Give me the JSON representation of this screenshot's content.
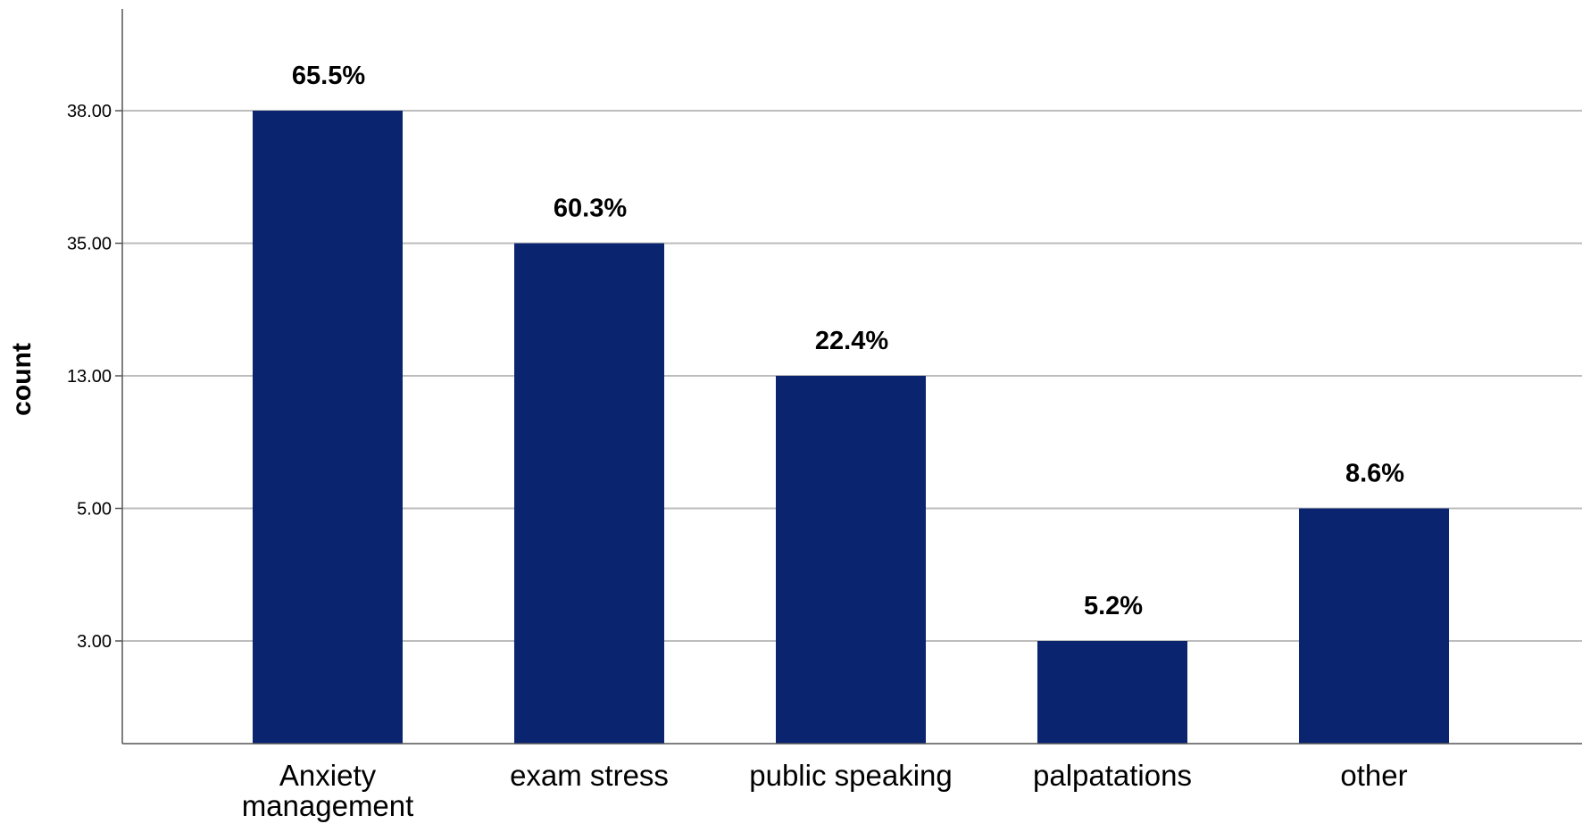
{
  "chart_data": {
    "type": "bar",
    "title": "",
    "xlabel": "",
    "ylabel": "count",
    "categories": [
      [
        "Anxiety",
        "management"
      ],
      [
        "exam stress"
      ],
      [
        "public speaking"
      ],
      [
        "palpatations"
      ],
      [
        "other"
      ]
    ],
    "values": [
      38,
      35,
      13,
      3,
      5
    ],
    "data_labels": [
      "65.5%",
      "60.3%",
      "22.4%",
      "5.2%",
      "8.6%"
    ],
    "y_ticks": [
      "3.00",
      "5.00",
      "13.00",
      "35.00",
      "38.00"
    ],
    "y_axis_categorical": true,
    "grid": true,
    "legend": "none",
    "colors": {
      "bar": "#0b2470",
      "grid": "#bdbdbd",
      "axis": "#555555"
    }
  }
}
